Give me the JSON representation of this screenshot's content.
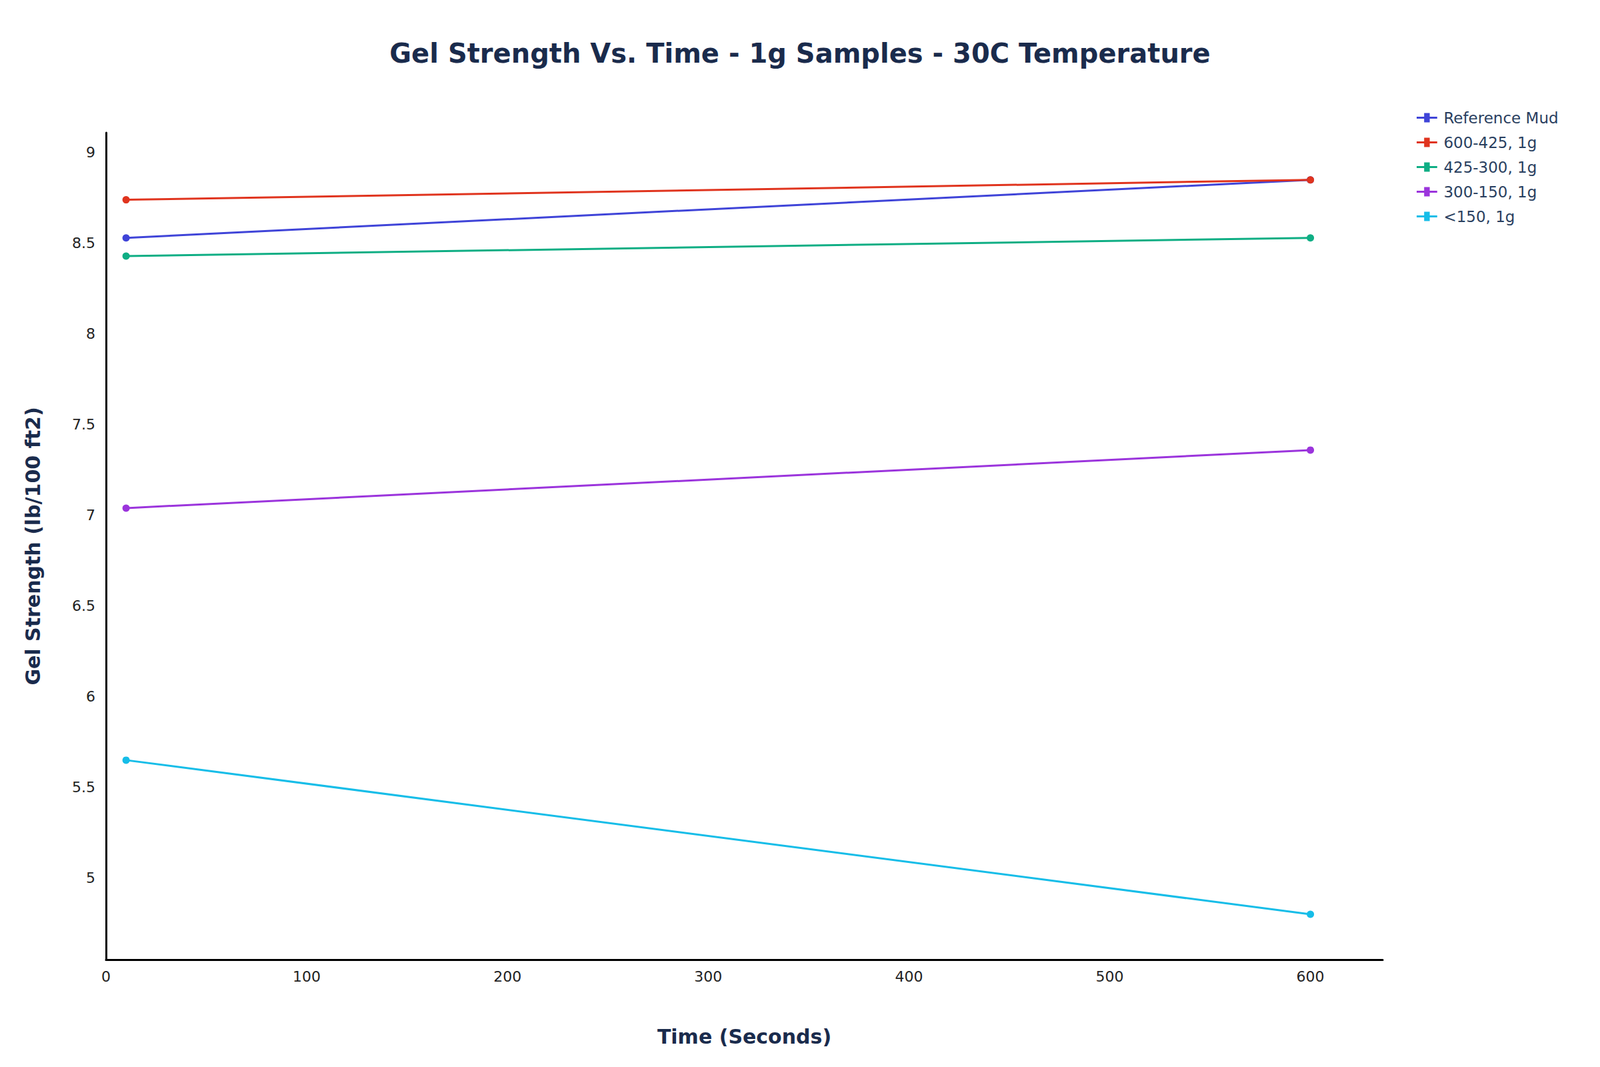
{
  "chart_data": {
    "type": "line",
    "title": "Gel Strength Vs. Time - 1g Samples - 30C Temperature",
    "x_label": "Time (Seconds)",
    "y_label": "Gel Strength (lb/100 ft2)",
    "x": [
      10,
      600
    ],
    "series": [
      {
        "name": "Reference Mud",
        "color": "#3f44d8",
        "values": [
          8.53,
          8.85
        ]
      },
      {
        "name": "600-425, 1g",
        "color": "#e0341e",
        "values": [
          8.74,
          8.85
        ]
      },
      {
        "name": "425-300, 1g",
        "color": "#0fae84",
        "values": [
          8.43,
          8.53
        ]
      },
      {
        "name": "300-150, 1g",
        "color": "#9b34dc",
        "values": [
          7.04,
          7.36
        ]
      },
      {
        "name": "<150, 1g",
        "color": "#16bde8",
        "values": [
          5.65,
          4.8
        ]
      }
    ],
    "xlim": [
      0,
      636
    ],
    "xticks": [
      0,
      100,
      200,
      300,
      400,
      500,
      600
    ],
    "ylim": [
      4.55,
      9.11
    ],
    "yticks": [
      5,
      5.5,
      6,
      6.5,
      7,
      7.5,
      8,
      8.5,
      9
    ],
    "grid": false,
    "legend": "top-right",
    "marker": "circle"
  }
}
